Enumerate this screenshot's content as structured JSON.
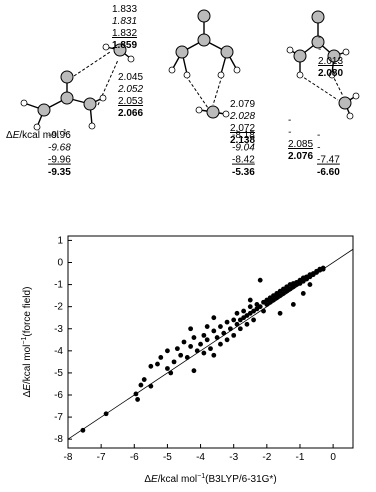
{
  "structures": [
    {
      "distance_sets": [
        [
          "1.833",
          "1.831",
          "1.832",
          "1.859"
        ],
        [
          "2.045",
          "2.052",
          "2.053",
          "2.066"
        ]
      ]
    },
    {
      "distance_sets": [
        [
          "2.079",
          "2.028",
          "2.072",
          "2.138"
        ]
      ]
    },
    {
      "distance_sets": [
        [
          "-",
          "-",
          "2.013",
          "2.080"
        ],
        [
          "-",
          "-",
          "2.085",
          "2.076"
        ]
      ]
    }
  ],
  "energy_label": [
    "Δ",
    "E",
    "/kcal mol",
    "−1",
    ":"
  ],
  "energies": [
    [
      "-9.96",
      "-9.68",
      "-9.96",
      "-9.35"
    ],
    [
      "-8.18",
      "-9.04",
      "-8.42",
      "-5.36"
    ],
    [
      "-",
      "-",
      "-7.47",
      "-6.60"
    ]
  ],
  "chart_data": {
    "type": "scatter",
    "xlabel": [
      "Δ",
      "E",
      "/kcal mol",
      "−1",
      "(B3LYP/6-31G*)"
    ],
    "ylabel": [
      "Δ",
      "E",
      "/kcal mol",
      "−1",
      "(force field)"
    ],
    "color": "#000000",
    "x": [
      -7.55,
      -6.85,
      -5.9,
      -5.95,
      -5.8,
      -5.7,
      -5.5,
      -5.5,
      -5.3,
      -5.2,
      -5.0,
      -5.0,
      -4.9,
      -4.8,
      -4.7,
      -4.6,
      -4.5,
      -4.4,
      -4.3,
      -4.2,
      -4.2,
      -4.1,
      -4.0,
      -3.9,
      -3.9,
      -3.8,
      -3.7,
      -3.6,
      -3.6,
      -3.5,
      -3.4,
      -3.4,
      -3.3,
      -3.2,
      -3.2,
      -3.1,
      -3.0,
      -3.0,
      -2.9,
      -2.9,
      -2.8,
      -2.8,
      -2.7,
      -2.7,
      -2.6,
      -2.6,
      -2.5,
      -2.5,
      -2.4,
      -2.4,
      -2.3,
      -2.3,
      -2.2,
      -2.2,
      -2.1,
      -2.1,
      -2.0,
      -2.0,
      -1.9,
      -1.9,
      -1.8,
      -1.8,
      -1.7,
      -1.7,
      -1.6,
      -1.6,
      -1.5,
      -1.5,
      -1.4,
      -1.4,
      -1.3,
      -1.3,
      -1.2,
      -1.2,
      -1.1,
      -1.1,
      -1.0,
      -1.0,
      -0.9,
      -0.9,
      -0.8,
      -0.8,
      -0.7,
      -0.7,
      -0.6,
      -0.6,
      -0.5,
      -0.5,
      -0.4,
      -0.4,
      -0.3,
      -0.3,
      -1.6,
      -1.2,
      -0.9,
      -0.7,
      -3.6,
      -4.3,
      -3.8,
      -2.5
    ],
    "values": [
      -7.6,
      -6.85,
      -6.2,
      -5.95,
      -5.55,
      -5.3,
      -4.7,
      -5.6,
      -4.6,
      -4.3,
      -4.0,
      -4.8,
      -5.0,
      -4.5,
      -3.9,
      -4.2,
      -3.6,
      -4.3,
      -3.8,
      -4.9,
      -3.4,
      -4.0,
      -3.7,
      -3.3,
      -4.1,
      -3.5,
      -3.9,
      -3.1,
      -4.2,
      -3.4,
      -2.9,
      -3.7,
      -3.2,
      -2.7,
      -3.5,
      -3.0,
      -2.6,
      -3.3,
      -2.8,
      -2.3,
      -2.6,
      -3.0,
      -2.2,
      -2.5,
      -2.4,
      -2.8,
      -2.0,
      -2.3,
      -2.2,
      -2.6,
      -1.9,
      -2.1,
      -0.8,
      -2.0,
      -1.8,
      -2.2,
      -1.7,
      -1.9,
      -1.6,
      -1.8,
      -1.5,
      -1.7,
      -1.4,
      -1.6,
      -1.3,
      -1.5,
      -1.2,
      -1.4,
      -1.1,
      -1.3,
      -1.0,
      -1.2,
      -0.95,
      -1.1,
      -0.9,
      -1.0,
      -0.8,
      -0.95,
      -0.7,
      -0.85,
      -0.65,
      -0.75,
      -0.55,
      -0.65,
      -0.5,
      -0.55,
      -0.4,
      -0.45,
      -0.35,
      -0.3,
      -0.25,
      -0.3,
      -2.3,
      -1.9,
      -1.4,
      -1.0,
      -2.5,
      -3.0,
      -2.9,
      -1.7
    ],
    "xlim": [
      -8,
      0.6
    ],
    "ylim": [
      -8.4,
      1.2
    ],
    "xticks": [
      -8,
      -7,
      -6,
      -5,
      -4,
      -3,
      -2,
      -1,
      0
    ],
    "yticks": [
      1,
      0,
      -1,
      -2,
      -3,
      -4,
      -5,
      -6,
      -7,
      -8
    ]
  }
}
